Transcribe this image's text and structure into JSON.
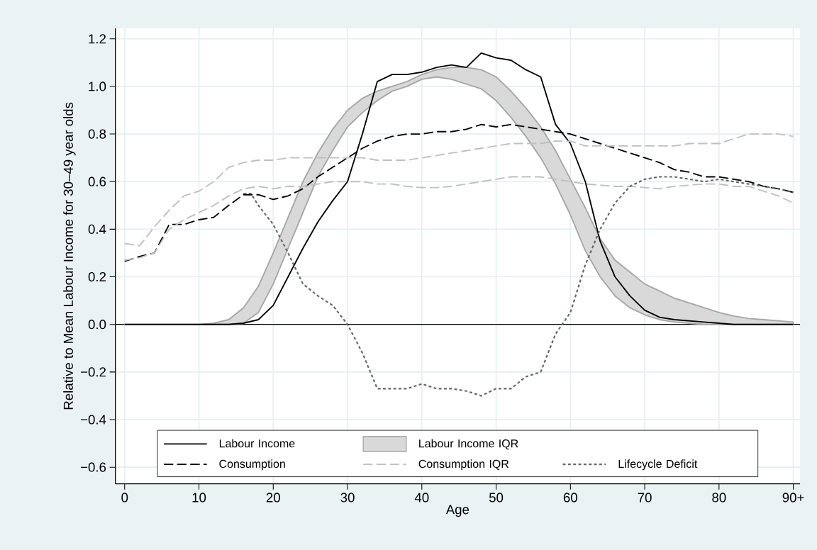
{
  "chart_data": {
    "type": "line",
    "xlabel": "Age",
    "ylabel": "Relative to Mean Labour Income for 30–49 year olds",
    "x": [
      0,
      2,
      4,
      6,
      8,
      10,
      12,
      14,
      16,
      18,
      20,
      22,
      24,
      26,
      28,
      30,
      32,
      34,
      36,
      38,
      40,
      42,
      44,
      46,
      48,
      50,
      52,
      54,
      56,
      58,
      60,
      62,
      64,
      66,
      68,
      70,
      72,
      74,
      76,
      78,
      80,
      82,
      84,
      86,
      88,
      90
    ],
    "series": [
      {
        "name": "Labour Income",
        "line_style": "solid",
        "color": "#000000",
        "values": [
          0,
          0,
          0,
          0,
          0,
          0,
          0,
          0,
          0.005,
          0.02,
          0.08,
          0.2,
          0.32,
          0.43,
          0.52,
          0.6,
          0.8,
          1.02,
          1.05,
          1.05,
          1.06,
          1.08,
          1.09,
          1.08,
          1.14,
          1.12,
          1.11,
          1.07,
          1.04,
          0.84,
          0.76,
          0.6,
          0.35,
          0.2,
          0.12,
          0.06,
          0.03,
          0.02,
          0.015,
          0.01,
          0.005,
          0,
          0,
          0,
          0,
          0
        ]
      },
      {
        "name": "Labour Income IQR",
        "type": "area",
        "color": "#d9d9d9",
        "values": [
          null,
          null,
          null,
          null,
          null,
          null,
          null,
          null,
          null,
          null,
          null,
          null,
          null,
          null,
          null,
          null,
          null,
          null,
          null,
          null,
          null,
          null,
          null,
          null,
          null,
          null,
          null,
          null,
          null,
          null,
          null,
          null,
          null,
          null,
          null,
          null,
          null,
          null,
          null,
          null,
          null,
          null,
          null,
          null,
          null,
          null
        ],
        "upper": [
          0,
          0,
          0,
          0,
          0,
          0,
          0.005,
          0.02,
          0.07,
          0.16,
          0.3,
          0.45,
          0.6,
          0.72,
          0.82,
          0.9,
          0.95,
          0.98,
          1.0,
          1.02,
          1.05,
          1.07,
          1.08,
          1.08,
          1.07,
          1.04,
          0.98,
          0.91,
          0.83,
          0.73,
          0.61,
          0.49,
          0.36,
          0.27,
          0.22,
          0.17,
          0.14,
          0.11,
          0.09,
          0.07,
          0.05,
          0.035,
          0.025,
          0.02,
          0.015,
          0.01
        ],
        "lower": [
          0,
          0,
          0,
          0,
          0,
          0,
          0,
          0,
          0.005,
          0.05,
          0.17,
          0.32,
          0.47,
          0.62,
          0.73,
          0.83,
          0.89,
          0.94,
          0.98,
          1.0,
          1.03,
          1.04,
          1.03,
          1.01,
          0.99,
          0.94,
          0.87,
          0.79,
          0.7,
          0.59,
          0.46,
          0.31,
          0.2,
          0.12,
          0.07,
          0.04,
          0.02,
          0.01,
          0.005,
          0,
          0,
          0,
          0,
          0,
          0,
          0
        ]
      },
      {
        "name": "Consumption",
        "line_style": "dashed",
        "color": "#000000",
        "values": [
          0.265,
          0.285,
          0.3,
          0.42,
          0.42,
          0.44,
          0.45,
          0.5,
          0.545,
          0.545,
          0.525,
          0.54,
          0.57,
          0.62,
          0.66,
          0.7,
          0.74,
          0.77,
          0.79,
          0.8,
          0.8,
          0.81,
          0.81,
          0.82,
          0.84,
          0.83,
          0.84,
          0.83,
          0.82,
          0.81,
          0.8,
          0.78,
          0.76,
          0.74,
          0.72,
          0.7,
          0.68,
          0.65,
          0.64,
          0.62,
          0.62,
          0.61,
          0.6,
          0.58,
          0.57,
          0.555
        ]
      },
      {
        "name": "Consumption IQR",
        "line_style": "dashed",
        "color": "#bfbfbf",
        "values": [
          0.34,
          0.33,
          0.41,
          0.48,
          0.54,
          0.56,
          0.6,
          0.66,
          0.68,
          0.69,
          0.69,
          0.7,
          0.7,
          0.7,
          0.7,
          0.7,
          0.7,
          0.69,
          0.69,
          0.69,
          0.7,
          0.71,
          0.72,
          0.73,
          0.74,
          0.75,
          0.76,
          0.76,
          0.76,
          0.77,
          0.77,
          0.75,
          0.75,
          0.75,
          0.75,
          0.75,
          0.75,
          0.75,
          0.76,
          0.76,
          0.76,
          0.78,
          0.8,
          0.8,
          0.8,
          0.79
        ]
      },
      {
        "line_style": "dashed",
        "color": "#bfbfbf",
        "values": [
          0.27,
          0.28,
          0.3,
          0.4,
          0.44,
          0.47,
          0.5,
          0.54,
          0.57,
          0.58,
          0.57,
          0.58,
          0.58,
          0.59,
          0.6,
          0.6,
          0.6,
          0.59,
          0.59,
          0.58,
          0.575,
          0.575,
          0.58,
          0.59,
          0.6,
          0.61,
          0.62,
          0.62,
          0.62,
          0.61,
          0.6,
          0.59,
          0.585,
          0.58,
          0.58,
          0.575,
          0.57,
          0.58,
          0.585,
          0.59,
          0.59,
          0.58,
          0.58,
          0.56,
          0.54,
          0.51
        ]
      },
      {
        "name": "Lifecycle Deficit",
        "line_style": "dotted",
        "color": "#666666",
        "x": [
          16,
          17,
          18,
          20,
          22,
          24,
          26,
          28,
          30,
          32,
          34,
          36,
          38,
          40,
          42,
          44,
          46,
          48,
          50,
          52,
          54,
          56,
          58,
          60,
          62,
          64,
          66,
          68,
          70,
          72,
          74,
          76,
          78,
          80,
          82,
          84,
          86,
          88,
          90
        ],
        "values": [
          0.55,
          0.55,
          0.5,
          0.42,
          0.3,
          0.17,
          0.12,
          0.08,
          0.0,
          -0.12,
          -0.27,
          -0.27,
          -0.27,
          -0.25,
          -0.27,
          -0.27,
          -0.28,
          -0.3,
          -0.27,
          -0.27,
          -0.22,
          -0.2,
          -0.04,
          0.05,
          0.25,
          0.4,
          0.51,
          0.58,
          0.61,
          0.62,
          0.62,
          0.61,
          0.6,
          0.61,
          0.6,
          0.59,
          0.58,
          0.57,
          0.555
        ]
      }
    ],
    "xlim": [
      -1.25,
      90.9
    ],
    "ylim": [
      -0.67,
      1.244
    ],
    "xticks": [
      0,
      10,
      20,
      30,
      40,
      50,
      60,
      70,
      80,
      {
        "value": 90,
        "label": "90+"
      }
    ],
    "yticks": [
      {
        "value": -0.6,
        "label": "−0.6"
      },
      {
        "value": -0.4,
        "label": "−0.4"
      },
      {
        "value": -0.2,
        "label": "−0.2"
      },
      {
        "value": 0,
        "label": "0.0"
      },
      {
        "value": 0.2,
        "label": "0.2"
      },
      {
        "value": 0.4,
        "label": "0.4"
      },
      {
        "value": 0.6,
        "label": "0.6"
      },
      {
        "value": 0.8,
        "label": "0.8"
      },
      {
        "value": 1.0,
        "label": "1.0"
      },
      {
        "value": 1.2,
        "label": "1.2"
      }
    ],
    "grid": true,
    "legend": "bottom",
    "ref_lines": [
      {
        "axis": "y",
        "value": 0,
        "color": "#000000"
      }
    ]
  }
}
